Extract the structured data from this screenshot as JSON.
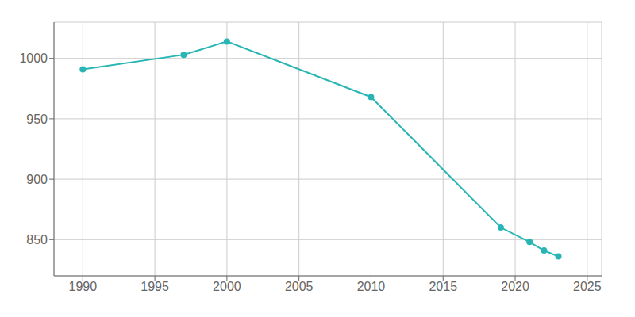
{
  "chart_data": {
    "type": "line",
    "x": [
      1990,
      1997,
      2000,
      2010,
      2019,
      2021,
      2022,
      2023
    ],
    "values": [
      991,
      1003,
      1014,
      968,
      860,
      848,
      841,
      836
    ],
    "color": "#2ab5b5",
    "marker": "circle",
    "xlim": [
      1988,
      2026
    ],
    "ylim": [
      820,
      1030
    ],
    "xticks": [
      1990,
      1995,
      2000,
      2005,
      2010,
      2015,
      2020,
      2025
    ],
    "yticks": [
      850,
      900,
      950,
      1000
    ],
    "grid": true
  }
}
